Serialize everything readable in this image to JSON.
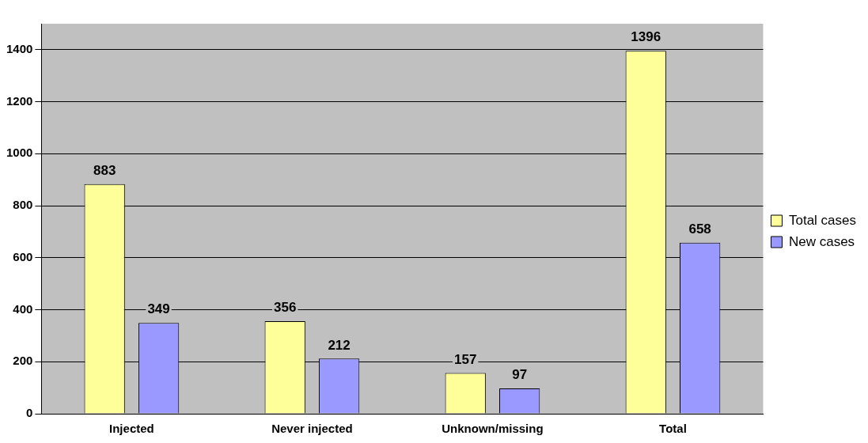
{
  "chart_data": {
    "type": "bar",
    "categories": [
      "Injected",
      "Never injected",
      "Unknown/missing",
      "Total"
    ],
    "series": [
      {
        "name": "Total cases",
        "color": "#ffff99",
        "values": [
          883,
          356,
          157,
          1396
        ]
      },
      {
        "name": "New cases",
        "color": "#9999ff",
        "values": [
          349,
          212,
          97,
          658
        ]
      }
    ],
    "ylim": [
      0,
      1500
    ],
    "yticks": [
      0,
      200,
      400,
      600,
      800,
      1000,
      1200,
      1400
    ],
    "grid": "y",
    "legend": "right",
    "data_labels": true
  }
}
